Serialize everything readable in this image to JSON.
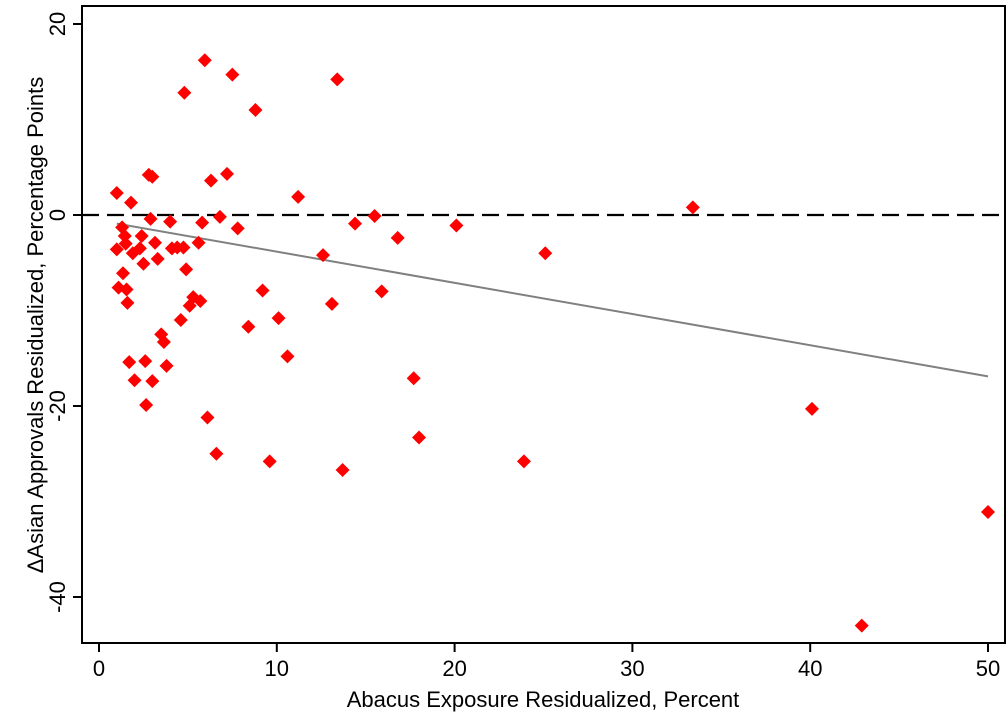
{
  "chart_data": {
    "type": "scatter",
    "xlabel": "Abacus Exposure Residualized, Percent",
    "ylabel": "ΔAsian Approvals Residualized, Percentage Points",
    "xlim": [
      -1,
      51
    ],
    "ylim": [
      -45,
      21
    ],
    "x_ticks": [
      0,
      10,
      20,
      30,
      40,
      50
    ],
    "x_tick_labels": [
      "0",
      "10",
      "20",
      "30",
      "40",
      "50"
    ],
    "y_ticks": [
      -40,
      -20,
      0,
      20
    ],
    "y_tick_labels": [
      "-40",
      "-20",
      "0",
      "20"
    ],
    "grid": false,
    "legend": "none",
    "marker": "diamond",
    "marker_color": "#ff0000",
    "reference_line": {
      "y": 0,
      "style": "dashed",
      "color": "#000000"
    },
    "fit_line": {
      "x": [
        1.0,
        50.0
      ],
      "y": [
        -0.9,
        -16.9
      ],
      "color": "#808080"
    },
    "points": [
      [
        1.0,
        2.3
      ],
      [
        1.0,
        -3.6
      ],
      [
        1.1,
        -7.6
      ],
      [
        1.3,
        -1.3
      ],
      [
        1.35,
        -6.1
      ],
      [
        1.45,
        -2.2
      ],
      [
        1.5,
        -3.0
      ],
      [
        1.55,
        -7.8
      ],
      [
        1.6,
        -9.2
      ],
      [
        1.7,
        -15.4
      ],
      [
        1.8,
        1.3
      ],
      [
        1.9,
        -4.0
      ],
      [
        2.0,
        -17.3
      ],
      [
        2.3,
        -3.5
      ],
      [
        2.4,
        -2.2
      ],
      [
        2.5,
        -5.1
      ],
      [
        2.6,
        -15.3
      ],
      [
        2.65,
        -19.9
      ],
      [
        2.8,
        4.2
      ],
      [
        2.9,
        -0.4
      ],
      [
        3.0,
        4.0
      ],
      [
        3.0,
        -17.4
      ],
      [
        3.15,
        -2.9
      ],
      [
        3.3,
        -4.6
      ],
      [
        3.5,
        -12.5
      ],
      [
        3.65,
        -13.3
      ],
      [
        3.8,
        -15.8
      ],
      [
        4.0,
        -0.7
      ],
      [
        4.1,
        -3.5
      ],
      [
        4.4,
        -3.4
      ],
      [
        4.6,
        -11.0
      ],
      [
        4.75,
        -3.4
      ],
      [
        4.8,
        12.8
      ],
      [
        4.9,
        -5.7
      ],
      [
        5.1,
        -9.5
      ],
      [
        5.3,
        -8.6
      ],
      [
        5.6,
        -2.9
      ],
      [
        5.7,
        -9.0
      ],
      [
        5.8,
        -0.8
      ],
      [
        5.95,
        16.2
      ],
      [
        6.1,
        -21.2
      ],
      [
        6.3,
        3.6
      ],
      [
        6.6,
        -25.0
      ],
      [
        6.8,
        -0.2
      ],
      [
        7.2,
        4.3
      ],
      [
        7.5,
        14.7
      ],
      [
        7.8,
        -1.4
      ],
      [
        8.4,
        -11.7
      ],
      [
        8.8,
        11.0
      ],
      [
        9.2,
        -7.9
      ],
      [
        9.6,
        -25.8
      ],
      [
        10.1,
        -10.8
      ],
      [
        10.6,
        -14.8
      ],
      [
        11.2,
        1.9
      ],
      [
        12.6,
        -4.2
      ],
      [
        13.1,
        -9.3
      ],
      [
        13.4,
        14.2
      ],
      [
        13.7,
        -26.7
      ],
      [
        14.4,
        -0.9
      ],
      [
        15.5,
        -0.1
      ],
      [
        15.9,
        -8.0
      ],
      [
        16.8,
        -2.4
      ],
      [
        17.7,
        -17.1
      ],
      [
        18.0,
        -23.3
      ],
      [
        20.1,
        -1.1
      ],
      [
        23.9,
        -25.8
      ],
      [
        25.1,
        -4.0
      ],
      [
        33.4,
        0.8
      ],
      [
        40.1,
        -20.3
      ],
      [
        42.9,
        -43.0
      ],
      [
        50.0,
        -31.1
      ]
    ]
  }
}
